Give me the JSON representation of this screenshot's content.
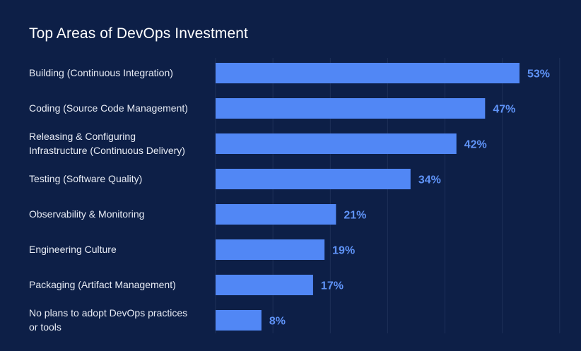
{
  "colors": {
    "background": "#0d1f47",
    "bar": "#5187f5",
    "value_text": "#5f93f7",
    "label_text": "#e8ecf5",
    "grid": "#1e3058"
  },
  "chart_data": {
    "type": "bar",
    "orientation": "horizontal",
    "title": "Top Areas of DevOps Investment",
    "categories": [
      "Building (Continuous Integration)",
      "Coding (Source Code Management)",
      "Releasing & Configuring\nInfrastructure (Continuous Delivery)",
      "Testing (Software Quality)",
      "Observability & Monitoring",
      "Engineering Culture",
      "Packaging (Artifact Management)",
      "No plans to adopt DevOps practices\nor tools"
    ],
    "values": [
      53,
      47,
      42,
      34,
      21,
      19,
      17,
      8
    ],
    "value_labels": [
      "53%",
      "47%",
      "42%",
      "34%",
      "21%",
      "19%",
      "17%",
      "8%"
    ],
    "unit": "%",
    "xlim": [
      0,
      60
    ],
    "grid": true,
    "legend": "none"
  }
}
